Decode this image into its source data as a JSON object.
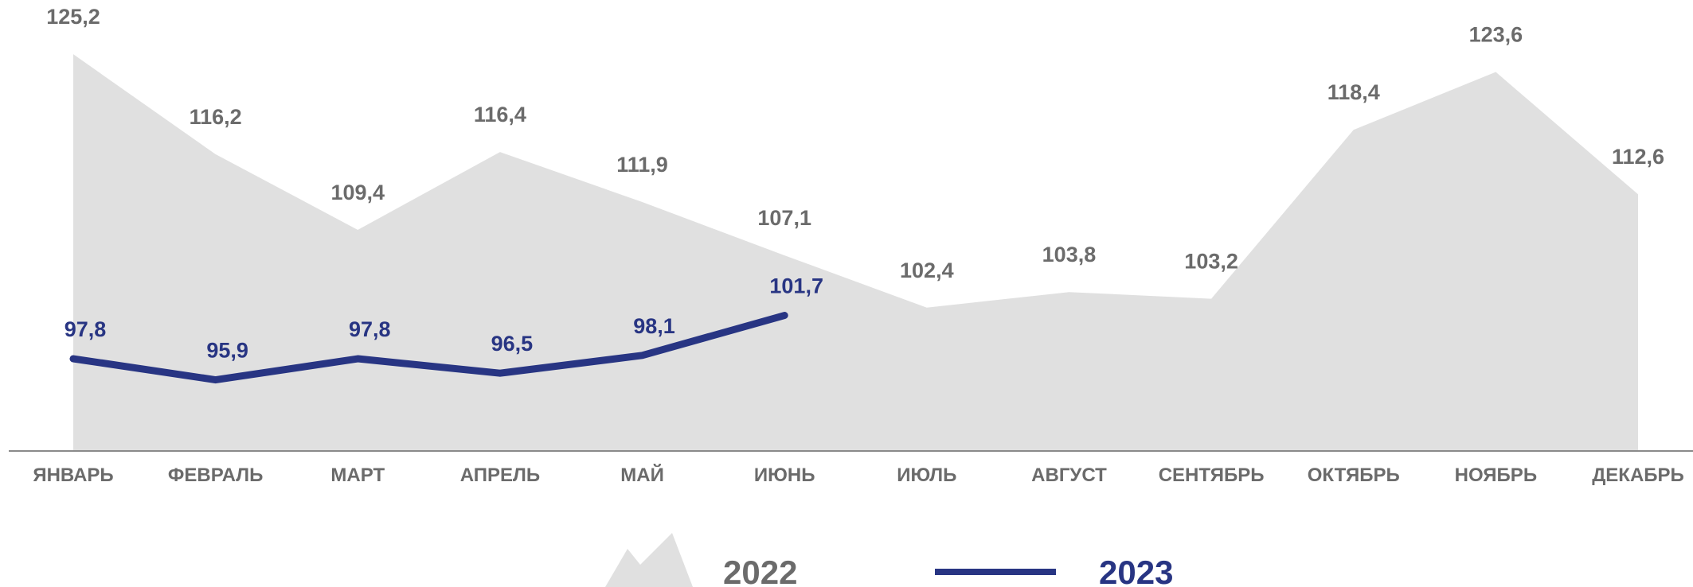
{
  "chart_data": {
    "type": "line",
    "categories": [
      "ЯНВАРЬ",
      "ФЕВРАЛЬ",
      "МАРТ",
      "АПРЕЛЬ",
      "МАЙ",
      "ИЮНЬ",
      "ИЮЛЬ",
      "АВГУСТ",
      "СЕНТЯБРЬ",
      "ОКТЯБРЬ",
      "НОЯБРЬ",
      "ДЕКАБРЬ"
    ],
    "series": [
      {
        "name": "2022",
        "type": "area",
        "color": "#e0e0e0",
        "label_color": "#6b6b6b",
        "values": [
          125.2,
          116.2,
          109.4,
          116.4,
          111.9,
          107.1,
          102.4,
          103.8,
          103.2,
          118.4,
          123.6,
          112.6
        ],
        "value_labels": [
          "125,2",
          "116,2",
          "109,4",
          "116,4",
          "111,9",
          "107,1",
          "102,4",
          "103,8",
          "103,2",
          "118,4",
          "123,6",
          "112,6"
        ]
      },
      {
        "name": "2023",
        "type": "line",
        "color": "#283583",
        "label_color": "#283583",
        "values": [
          97.8,
          95.9,
          97.8,
          96.5,
          98.1,
          101.7,
          null,
          null,
          null,
          null,
          null,
          null
        ],
        "value_labels": [
          "97,8",
          "95,9",
          "97,8",
          "96,5",
          "98,1",
          "101,7",
          null,
          null,
          null,
          null,
          null,
          null
        ]
      }
    ],
    "ylim": [
      89.5,
      126
    ]
  }
}
